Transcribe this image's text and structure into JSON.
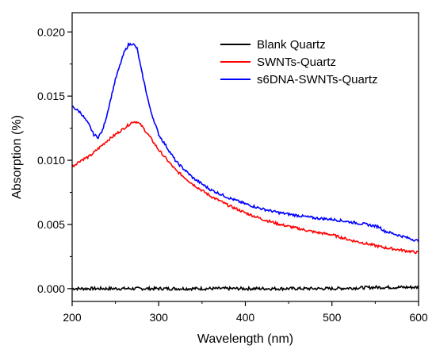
{
  "chart_data": {
    "type": "line",
    "xlabel": "Wavelength (nm)",
    "ylabel": "Absorption (%)",
    "xlim": [
      200,
      600
    ],
    "ylim": [
      -0.001,
      0.0215
    ],
    "xticks": [
      200,
      300,
      400,
      500,
      600
    ],
    "xtick_labels": [
      "200",
      "300",
      "400",
      "500",
      "600"
    ],
    "yticks": [
      0.0,
      0.005,
      0.01,
      0.015,
      0.02
    ],
    "ytick_labels": [
      "0.000",
      "0.005",
      "0.010",
      "0.015",
      "0.020"
    ],
    "grid": false,
    "legend_position": "top-right",
    "series": [
      {
        "name": "Blank Quartz",
        "color": "#000000",
        "x": [
          200,
          250,
          300,
          350,
          400,
          450,
          500,
          550,
          560,
          600
        ],
        "y": [
          0.0,
          0.0,
          0.0,
          0.0,
          0.0,
          0.0,
          0.0,
          0.0001,
          0.0001,
          0.0001
        ]
      },
      {
        "name": "SWNTs-Quartz",
        "color": "#ff0000",
        "x": [
          200,
          210,
          220,
          230,
          240,
          250,
          260,
          270,
          275,
          280,
          290,
          300,
          320,
          340,
          360,
          380,
          400,
          420,
          440,
          460,
          480,
          500,
          520,
          540,
          560,
          580,
          600
        ],
        "y": [
          0.0095,
          0.01,
          0.0103,
          0.0109,
          0.0115,
          0.012,
          0.0125,
          0.013,
          0.013,
          0.0127,
          0.0118,
          0.0108,
          0.0092,
          0.0081,
          0.0072,
          0.0065,
          0.0059,
          0.0054,
          0.005,
          0.0047,
          0.0044,
          0.0042,
          0.0038,
          0.0035,
          0.0032,
          0.003,
          0.0028
        ]
      },
      {
        "name": "s6DNA-SWNTs-Quartz",
        "color": "#0000ff",
        "x": [
          200,
          210,
          220,
          225,
          230,
          235,
          240,
          250,
          260,
          265,
          270,
          275,
          280,
          290,
          300,
          320,
          340,
          360,
          380,
          400,
          420,
          440,
          460,
          480,
          500,
          520,
          540,
          555,
          560,
          580,
          600
        ],
        "y": [
          0.0142,
          0.0137,
          0.0127,
          0.012,
          0.0118,
          0.0123,
          0.0135,
          0.0163,
          0.0184,
          0.019,
          0.0191,
          0.0187,
          0.017,
          0.014,
          0.012,
          0.0099,
          0.0086,
          0.0077,
          0.0071,
          0.0066,
          0.0062,
          0.0059,
          0.0057,
          0.0055,
          0.0054,
          0.0052,
          0.005,
          0.0048,
          0.0045,
          0.0041,
          0.0037
        ]
      }
    ]
  }
}
